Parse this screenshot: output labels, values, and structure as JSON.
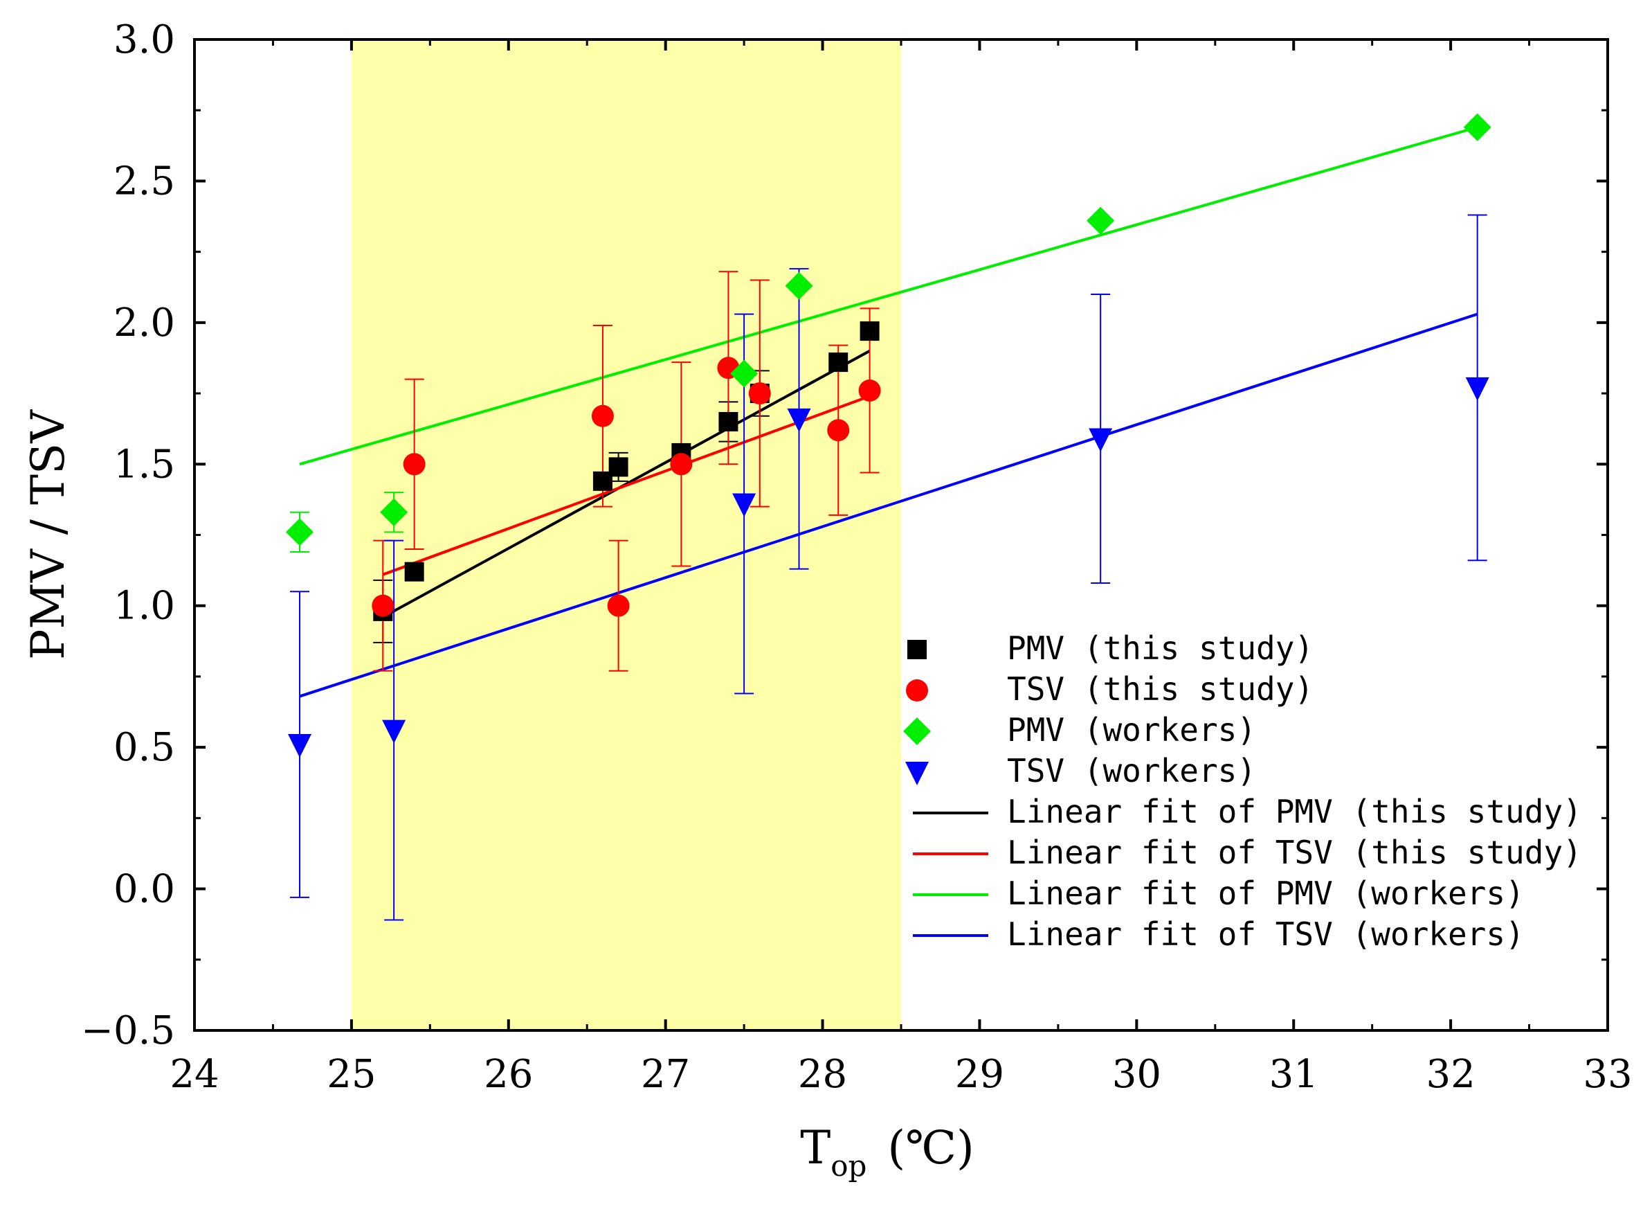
{
  "chart_data": {
    "type": "scatter",
    "title": "",
    "xlabel": "T",
    "xlabel_subscript": "op",
    "xlabel_unit": "(℃)",
    "ylabel": "PMV / TSV",
    "xlim": [
      24,
      33
    ],
    "ylim": [
      -0.5,
      3.0
    ],
    "x_ticks": [
      "24",
      "25",
      "26",
      "27",
      "28",
      "29",
      "30",
      "31",
      "32",
      "33"
    ],
    "y_ticks": [
      "−0.5",
      "0.0",
      "0.5",
      "1.0",
      "1.5",
      "2.0",
      "2.5",
      "3.0"
    ],
    "highlight_band": {
      "x_range": [
        25.0,
        28.5
      ],
      "color": "#ffffaa"
    },
    "series": [
      {
        "name": "PMV (this study)",
        "marker": "square",
        "color": "#000000",
        "points": [
          {
            "x": 25.2,
            "y": 0.98,
            "err": 0.11
          },
          {
            "x": 25.4,
            "y": 1.12,
            "err": 0.0
          },
          {
            "x": 26.6,
            "y": 1.44,
            "err": 0.0
          },
          {
            "x": 26.7,
            "y": 1.49,
            "err": 0.05
          },
          {
            "x": 27.1,
            "y": 1.54,
            "err": 0.0
          },
          {
            "x": 27.4,
            "y": 1.65,
            "err": 0.07
          },
          {
            "x": 27.6,
            "y": 1.75,
            "err": 0.08
          },
          {
            "x": 28.1,
            "y": 1.86,
            "err": 0.0
          },
          {
            "x": 28.3,
            "y": 1.97,
            "err": 0.0
          }
        ]
      },
      {
        "name": "TSV (this study)",
        "marker": "circle",
        "color": "#ff0000",
        "points": [
          {
            "x": 25.2,
            "y": 1.0,
            "err": 0.23
          },
          {
            "x": 25.4,
            "y": 1.5,
            "err": 0.3
          },
          {
            "x": 26.6,
            "y": 1.67,
            "err": 0.32
          },
          {
            "x": 26.7,
            "y": 1.0,
            "err": 0.23
          },
          {
            "x": 27.1,
            "y": 1.5,
            "err": 0.36
          },
          {
            "x": 27.4,
            "y": 1.84,
            "err": 0.34
          },
          {
            "x": 27.6,
            "y": 1.75,
            "err": 0.4
          },
          {
            "x": 28.1,
            "y": 1.62,
            "err": 0.3
          },
          {
            "x": 28.3,
            "y": 1.76,
            "err": 0.29
          }
        ]
      },
      {
        "name": "PMV (workers)",
        "marker": "diamond",
        "color": "#00ee00",
        "points": [
          {
            "x": 24.67,
            "y": 1.26,
            "err": 0.07
          },
          {
            "x": 25.27,
            "y": 1.33,
            "err": 0.07
          },
          {
            "x": 27.5,
            "y": 1.82,
            "err": 0.0
          },
          {
            "x": 27.85,
            "y": 2.13,
            "err": 0.0
          },
          {
            "x": 29.77,
            "y": 2.36,
            "err": 0.0
          },
          {
            "x": 32.17,
            "y": 2.69,
            "err": 0.0
          }
        ]
      },
      {
        "name": "TSV (workers)",
        "marker": "triangle-down",
        "color": "#0000ff",
        "points": [
          {
            "x": 24.67,
            "y": 0.51,
            "err": 0.54
          },
          {
            "x": 25.27,
            "y": 0.56,
            "err": 0.67
          },
          {
            "x": 27.5,
            "y": 1.36,
            "err": 0.67
          },
          {
            "x": 27.85,
            "y": 1.66,
            "err": 0.53
          },
          {
            "x": 29.77,
            "y": 1.59,
            "err": 0.51
          },
          {
            "x": 32.17,
            "y": 1.77,
            "err": 0.61
          }
        ]
      }
    ],
    "fits": [
      {
        "name": "Linear fit of PMV (this study)",
        "color": "#000000",
        "x": [
          25.2,
          28.3
        ],
        "y": [
          0.96,
          1.9
        ]
      },
      {
        "name": "Linear fit of TSV (this study)",
        "color": "#ff0000",
        "x": [
          25.2,
          28.3
        ],
        "y": [
          1.11,
          1.74
        ]
      },
      {
        "name": "Linear fit of PMV (workers)",
        "color": "#00ee00",
        "x": [
          24.67,
          32.17
        ],
        "y": [
          1.5,
          2.69
        ]
      },
      {
        "name": "Linear fit of TSV (workers)",
        "color": "#0000ff",
        "x": [
          24.67,
          32.17
        ],
        "y": [
          0.68,
          2.03
        ]
      }
    ],
    "legend_position": "bottom-right"
  }
}
